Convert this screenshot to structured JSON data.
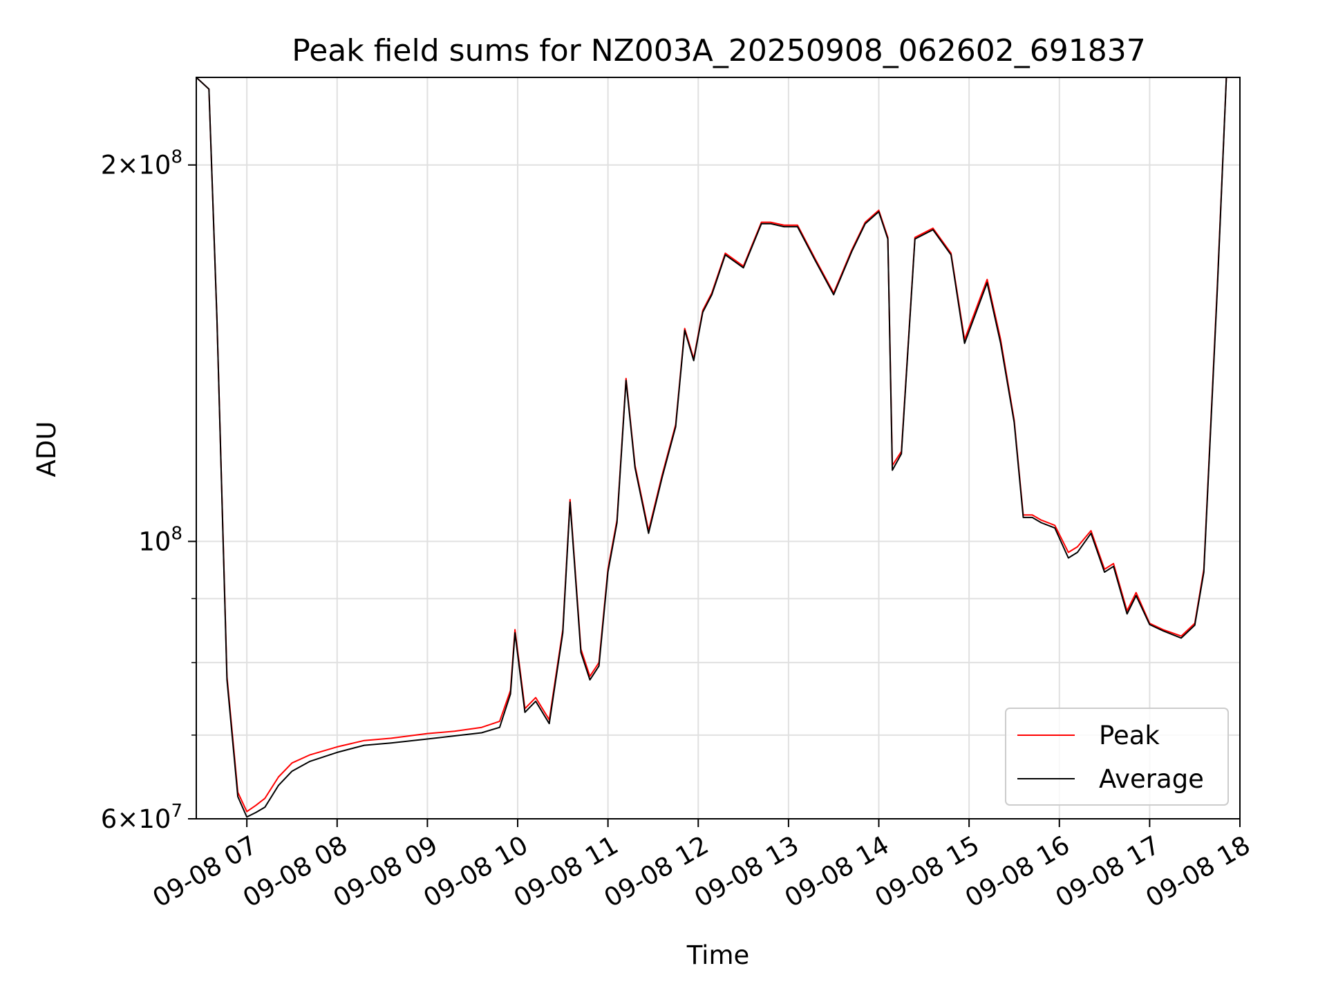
{
  "chart_data": {
    "type": "line",
    "title": "Peak field sums for NZ003A_20250908_062602_691837",
    "xlabel": "Time",
    "ylabel": "ADU",
    "x_unit": "hours (local time on 2025-09-08)",
    "y_scale": "log",
    "xlim": [
      6.44,
      18.0
    ],
    "ylim": [
      60000000,
      235000000
    ],
    "grid": true,
    "legend_position": "lower right",
    "x_ticks": [
      {
        "value": 7,
        "label": "09-08 07"
      },
      {
        "value": 8,
        "label": "09-08 08"
      },
      {
        "value": 9,
        "label": "09-08 09"
      },
      {
        "value": 10,
        "label": "09-08 10"
      },
      {
        "value": 11,
        "label": "09-08 11"
      },
      {
        "value": 12,
        "label": "09-08 12"
      },
      {
        "value": 13,
        "label": "09-08 13"
      },
      {
        "value": 14,
        "label": "09-08 14"
      },
      {
        "value": 15,
        "label": "09-08 15"
      },
      {
        "value": 16,
        "label": "09-08 16"
      },
      {
        "value": 17,
        "label": "09-08 17"
      },
      {
        "value": 18,
        "label": "09-08 18"
      }
    ],
    "y_ticks_major": [
      {
        "value": 60000000,
        "mant": "6",
        "exp": "7"
      },
      {
        "value": 100000000,
        "mant": "",
        "exp": "8"
      },
      {
        "value": 200000000,
        "mant": "2",
        "exp": "8"
      }
    ],
    "y_ticks_minor": [
      70000000,
      80000000,
      90000000
    ],
    "series": [
      {
        "name": "Peak",
        "color": "#ff0000",
        "x": [
          6.44,
          6.58,
          6.67,
          6.78,
          6.9,
          7.0,
          7.1,
          7.2,
          7.35,
          7.5,
          7.7,
          8.0,
          8.3,
          8.6,
          9.0,
          9.3,
          9.6,
          9.8,
          9.92,
          9.97,
          10.08,
          10.2,
          10.35,
          10.5,
          10.58,
          10.7,
          10.8,
          10.9,
          11.0,
          11.1,
          11.2,
          11.3,
          11.45,
          11.6,
          11.75,
          11.85,
          11.95,
          12.05,
          12.15,
          12.3,
          12.5,
          12.7,
          12.8,
          12.95,
          13.1,
          13.3,
          13.5,
          13.7,
          13.85,
          14.0,
          14.1,
          14.15,
          14.25,
          14.4,
          14.6,
          14.8,
          14.95,
          15.1,
          15.2,
          15.35,
          15.5,
          15.6,
          15.7,
          15.8,
          15.95,
          16.1,
          16.2,
          16.35,
          16.5,
          16.6,
          16.75,
          16.85,
          17.0,
          17.15,
          17.35,
          17.5,
          17.6,
          17.75,
          17.85
        ],
        "y": [
          235000000,
          230000000,
          150000000,
          78000000,
          63000000,
          60800000,
          61500000,
          62300000,
          64800000,
          66500000,
          67500000,
          68500000,
          69300000,
          69600000,
          70200000,
          70500000,
          71000000,
          71800000,
          76000000,
          85000000,
          73500000,
          75000000,
          72000000,
          85000000,
          108000000,
          82000000,
          78000000,
          80000000,
          95000000,
          104000000,
          135000000,
          115000000,
          102000000,
          113000000,
          124000000,
          148000000,
          140000000,
          153000000,
          158000000,
          170000000,
          166000000,
          180000000,
          180000000,
          179000000,
          179000000,
          168000000,
          158000000,
          171000000,
          180000000,
          184000000,
          175000000,
          115000000,
          118000000,
          175000000,
          178000000,
          170000000,
          145000000,
          155000000,
          162000000,
          145000000,
          125000000,
          105000000,
          105000000,
          104000000,
          103000000,
          98000000,
          99000000,
          102000000,
          95000000,
          96000000,
          88000000,
          91000000,
          86000000,
          85000000,
          84000000,
          86000000,
          95000000,
          160000000,
          235000000
        ]
      },
      {
        "name": "Average",
        "color": "#000000",
        "x": [
          6.44,
          6.58,
          6.67,
          6.78,
          6.9,
          7.0,
          7.1,
          7.2,
          7.35,
          7.5,
          7.7,
          8.0,
          8.3,
          8.6,
          9.0,
          9.3,
          9.6,
          9.8,
          9.92,
          9.97,
          10.08,
          10.2,
          10.35,
          10.5,
          10.58,
          10.7,
          10.8,
          10.9,
          11.0,
          11.1,
          11.2,
          11.3,
          11.45,
          11.6,
          11.75,
          11.85,
          11.95,
          12.05,
          12.15,
          12.3,
          12.5,
          12.7,
          12.8,
          12.95,
          13.1,
          13.3,
          13.5,
          13.7,
          13.85,
          14.0,
          14.1,
          14.15,
          14.25,
          14.4,
          14.6,
          14.8,
          14.95,
          15.1,
          15.2,
          15.35,
          15.5,
          15.6,
          15.7,
          15.8,
          15.95,
          16.1,
          16.2,
          16.35,
          16.5,
          16.6,
          16.75,
          16.85,
          17.0,
          17.15,
          17.35,
          17.5,
          17.6,
          17.75,
          17.85
        ],
        "y": [
          235000000,
          230000000,
          150000000,
          77500000,
          62500000,
          60200000,
          60700000,
          61300000,
          63800000,
          65500000,
          66700000,
          67800000,
          68700000,
          69000000,
          69500000,
          69900000,
          70300000,
          71000000,
          75500000,
          84500000,
          73000000,
          74500000,
          71500000,
          84500000,
          107500000,
          81500000,
          77500000,
          79500000,
          94500000,
          103500000,
          134500000,
          114500000,
          101500000,
          112500000,
          123500000,
          147500000,
          139500000,
          152500000,
          157500000,
          169500000,
          165500000,
          179500000,
          179500000,
          178500000,
          178500000,
          167500000,
          157500000,
          170500000,
          179500000,
          183500000,
          174500000,
          114000000,
          117500000,
          174500000,
          177500000,
          169500000,
          144000000,
          154000000,
          161000000,
          144000000,
          124500000,
          104500000,
          104500000,
          103500000,
          102500000,
          97000000,
          98000000,
          101500000,
          94500000,
          95500000,
          87500000,
          90500000,
          85800000,
          84800000,
          83700000,
          85700000,
          94500000,
          159000000,
          235000000
        ]
      }
    ]
  }
}
